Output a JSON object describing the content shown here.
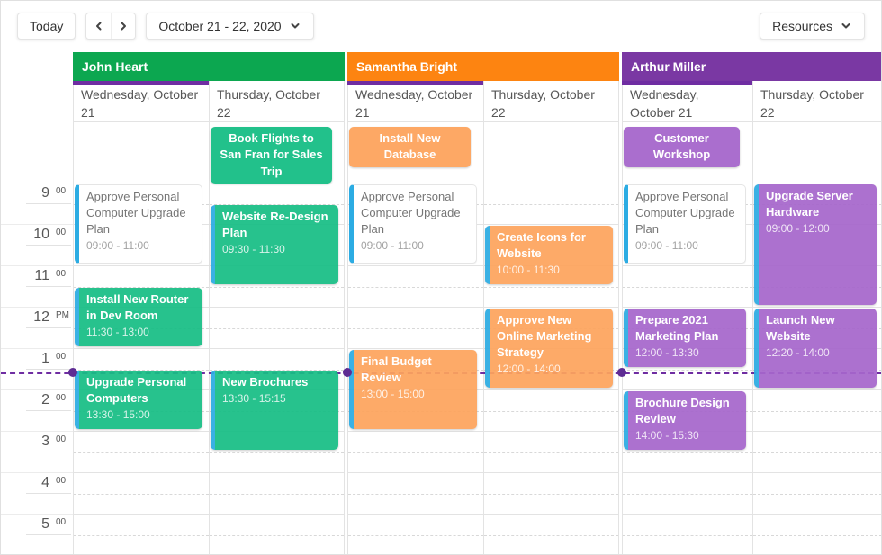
{
  "toolbar": {
    "today_label": "Today",
    "date_range_label": "October 21 - 22, 2020",
    "resources_label": "Resources"
  },
  "time_axis": {
    "hours": [
      {
        "label": "9",
        "suffix": "00"
      },
      {
        "label": "10",
        "suffix": "00"
      },
      {
        "label": "11",
        "suffix": "00"
      },
      {
        "label": "12",
        "suffix": "PM"
      },
      {
        "label": "1",
        "suffix": "00"
      },
      {
        "label": "2",
        "suffix": "00"
      },
      {
        "label": "3",
        "suffix": "00"
      },
      {
        "label": "4",
        "suffix": "00"
      },
      {
        "label": "5",
        "suffix": "00"
      }
    ]
  },
  "current_time": "13:35",
  "palette": {
    "appointment_strip_blue": "#2CACE3",
    "current_date_bar": "#6F2DA2",
    "current_time_line": "#6F2DA2",
    "current_time_dot": "#5E2C93"
  },
  "groups": [
    {
      "name": "John Heart",
      "header_color": "#0CA750",
      "event_color": "#17BE85",
      "days": [
        "Wednesday, October 21",
        "Thursday, October 22"
      ],
      "allday_events": [
        {
          "title": "Book Flights to San Fran for Sales Trip",
          "day": 1
        }
      ],
      "events": [
        {
          "title": "Approve Personal Computer Upgrade Plan",
          "time": "09:00 - 11:00",
          "start": "09:00",
          "end": "11:00",
          "day": 0,
          "style": "white"
        },
        {
          "title": "Install New Router in Dev Room",
          "time": "11:30 - 13:00",
          "start": "11:30",
          "end": "13:00",
          "day": 0,
          "style": "filled"
        },
        {
          "title": "Upgrade Personal Computers",
          "time": "13:30 - 15:00",
          "start": "13:30",
          "end": "15:00",
          "day": 0,
          "style": "filled"
        },
        {
          "title": "Website Re-Design Plan",
          "time": "09:30 - 11:30",
          "start": "09:30",
          "end": "11:30",
          "day": 1,
          "style": "filled"
        },
        {
          "title": "New Brochures",
          "time": "13:30 - 15:15",
          "start": "13:30",
          "end": "15:15",
          "day": 1,
          "style": "filled"
        }
      ]
    },
    {
      "name": "Samantha Bright",
      "header_color": "#FD8411",
      "event_color": "#FDA45D",
      "days": [
        "Wednesday, October 21",
        "Thursday, October 22"
      ],
      "allday_events": [
        {
          "title": "Install New Database",
          "day": 0
        }
      ],
      "events": [
        {
          "title": "Approve Personal Computer Upgrade Plan",
          "time": "09:00 - 11:00",
          "start": "09:00",
          "end": "11:00",
          "day": 0,
          "style": "white"
        },
        {
          "title": "Final Budget Review",
          "time": "13:00 - 15:00",
          "start": "13:00",
          "end": "15:00",
          "day": 0,
          "style": "filled"
        },
        {
          "title": "Create Icons for Website",
          "time": "10:00 - 11:30",
          "start": "10:00",
          "end": "11:30",
          "day": 1,
          "style": "filled"
        },
        {
          "title": "Approve New Online Marketing Strategy",
          "time": "12:00 - 14:00",
          "start": "12:00",
          "end": "14:00",
          "day": 1,
          "style": "filled"
        }
      ]
    },
    {
      "name": "Arthur Miller",
      "header_color": "#7A38A3",
      "event_color": "#A667CC",
      "days": [
        "Wednesday, October 21",
        "Thursday, October 22"
      ],
      "allday_events": [
        {
          "title": "Customer Workshop",
          "day": 0
        }
      ],
      "events": [
        {
          "title": "Approve Personal Computer Upgrade Plan",
          "time": "09:00 - 11:00",
          "start": "09:00",
          "end": "11:00",
          "day": 0,
          "style": "white"
        },
        {
          "title": "Prepare 2021 Marketing Plan",
          "time": "12:00 - 13:30",
          "start": "12:00",
          "end": "13:30",
          "day": 0,
          "style": "filled"
        },
        {
          "title": "Brochure Design Review",
          "time": "14:00 - 15:30",
          "start": "14:00",
          "end": "15:30",
          "day": 0,
          "style": "filled"
        },
        {
          "title": "Upgrade Server Hardware",
          "time": "09:00 - 12:00",
          "start": "09:00",
          "end": "12:00",
          "day": 1,
          "style": "filled"
        },
        {
          "title": "Launch New Website",
          "time": "12:20 - 14:00",
          "start": "12:20",
          "end": "14:00",
          "day": 1,
          "style": "filled"
        }
      ]
    }
  ]
}
